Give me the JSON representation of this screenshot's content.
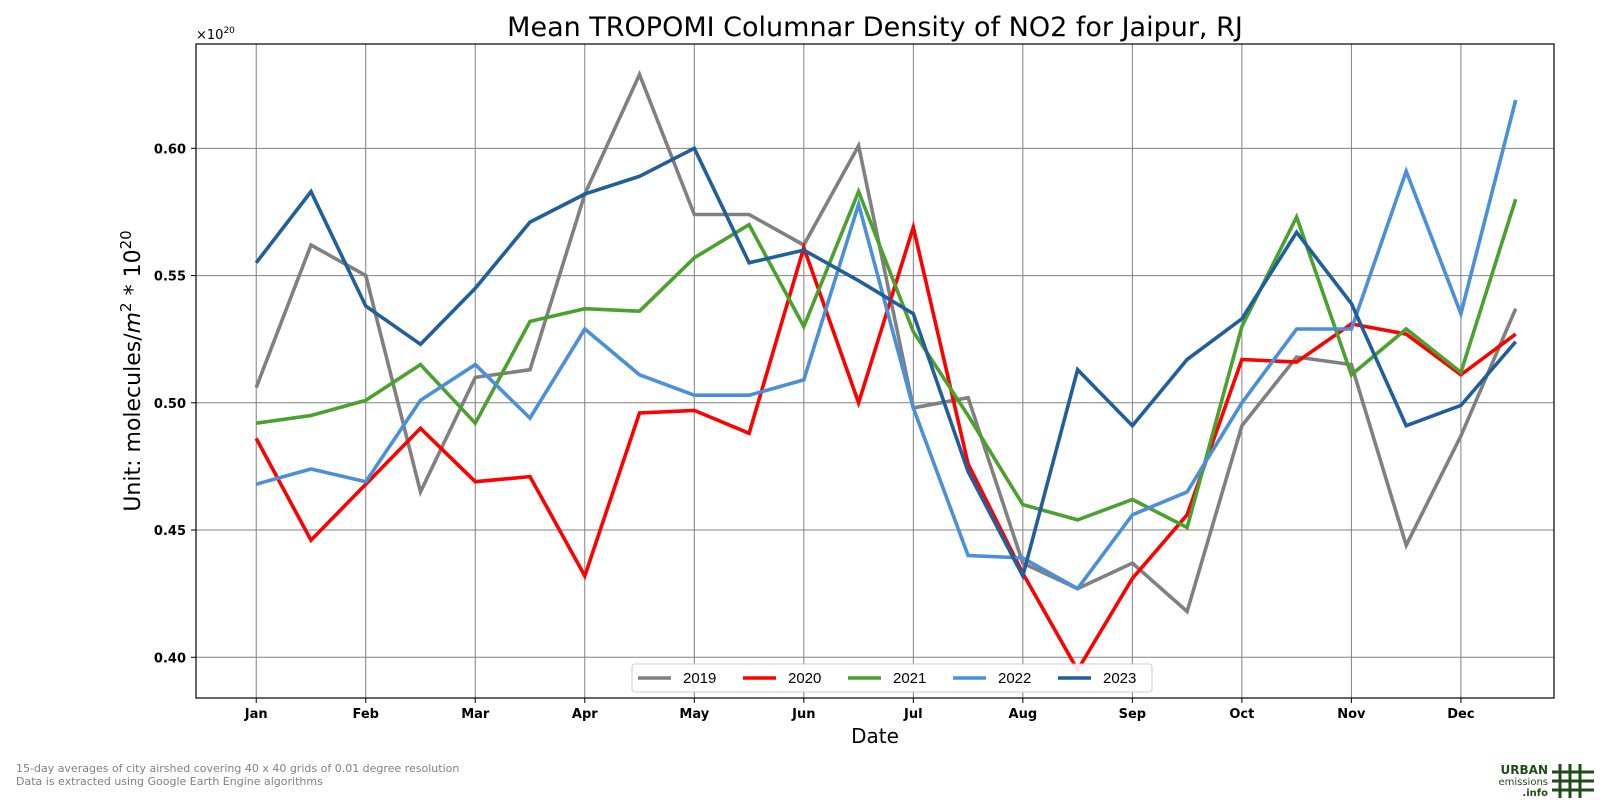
{
  "chart_data": {
    "type": "line",
    "title": "Mean TROPOMI Columnar Density of NO2 for Jaipur, RJ",
    "xlabel": "Date",
    "ylabel_prefix": "Unit: molecules/",
    "ylabel_math": "m",
    "ylabel_exp": "2",
    "ylabel_mid": " * 10",
    "ylabel_exp2": "20",
    "offset_base": "×10",
    "offset_exp": "20",
    "ylim": [
      0.384,
      0.641
    ],
    "xlim": [
      -0.55,
      11.85
    ],
    "yticks": [
      0.4,
      0.45,
      0.5,
      0.55,
      0.6
    ],
    "ytick_labels": [
      "0.40",
      "0.45",
      "0.50",
      "0.55",
      "0.60"
    ],
    "month_labels": [
      "Jan",
      "Feb",
      "Mar",
      "Apr",
      "May",
      "Jun",
      "Jul",
      "Aug",
      "Sep",
      "Oct",
      "Nov",
      "Dec"
    ],
    "x": [
      0,
      0.5,
      1,
      1.5,
      2,
      2.5,
      3,
      3.5,
      4,
      4.5,
      5,
      5.5,
      6,
      6.5,
      7,
      7.5,
      8,
      8.5,
      9,
      9.5,
      10,
      10.5,
      11,
      11.5
    ],
    "grid": true,
    "legend_position": "bottom-center",
    "series": [
      {
        "name": "2019",
        "color": "#808080",
        "values": [
          0.506,
          0.562,
          0.55,
          0.465,
          0.51,
          0.513,
          0.582,
          0.629,
          0.574,
          0.574,
          0.562,
          0.601,
          0.498,
          0.502,
          0.437,
          0.427,
          0.437,
          0.418,
          0.491,
          0.518,
          0.515,
          0.444,
          0.487,
          0.537
        ]
      },
      {
        "name": "2020",
        "color": "#ff0000",
        "values": [
          0.486,
          0.446,
          0.468,
          0.49,
          0.469,
          0.471,
          0.432,
          0.496,
          0.497,
          0.488,
          0.561,
          0.5,
          0.569,
          0.476,
          0.433,
          0.395,
          0.431,
          0.456,
          0.517,
          0.516,
          0.531,
          0.527,
          0.511,
          0.527
        ]
      },
      {
        "name": "2021",
        "color": "#4aa12e",
        "values": [
          0.492,
          0.495,
          0.501,
          0.515,
          0.492,
          0.532,
          0.537,
          0.536,
          0.557,
          0.57,
          0.53,
          0.583,
          0.528,
          0.495,
          0.46,
          0.454,
          0.462,
          0.451,
          0.53,
          0.573,
          0.511,
          0.529,
          0.512,
          0.58
        ]
      },
      {
        "name": "2022",
        "color": "#4a90d9",
        "values": [
          0.468,
          0.474,
          0.469,
          0.501,
          0.515,
          0.494,
          0.529,
          0.511,
          0.503,
          0.503,
          0.509,
          0.578,
          0.498,
          0.44,
          0.439,
          0.427,
          0.456,
          0.465,
          0.5,
          0.529,
          0.529,
          0.591,
          0.535,
          0.619
        ]
      },
      {
        "name": "2023",
        "color": "#215f9a",
        "values": [
          0.555,
          0.583,
          0.538,
          0.523,
          0.545,
          0.571,
          0.582,
          0.589,
          0.6,
          0.555,
          0.56,
          0.548,
          0.535,
          0.473,
          0.432,
          0.513,
          0.491,
          0.517,
          0.533,
          0.567,
          0.539,
          0.491,
          0.499,
          0.524
        ]
      }
    ]
  },
  "footnotes": {
    "line1": "15-day averages of city airshed covering 40 x 40 grids of 0.01 degree resolution",
    "line2": "Data is extracted using Google Earth Engine algorithms"
  },
  "logo": {
    "line1": "URBAN",
    "line2": "emissions",
    "line3": ".info",
    "color": "#1f4d1a"
  }
}
